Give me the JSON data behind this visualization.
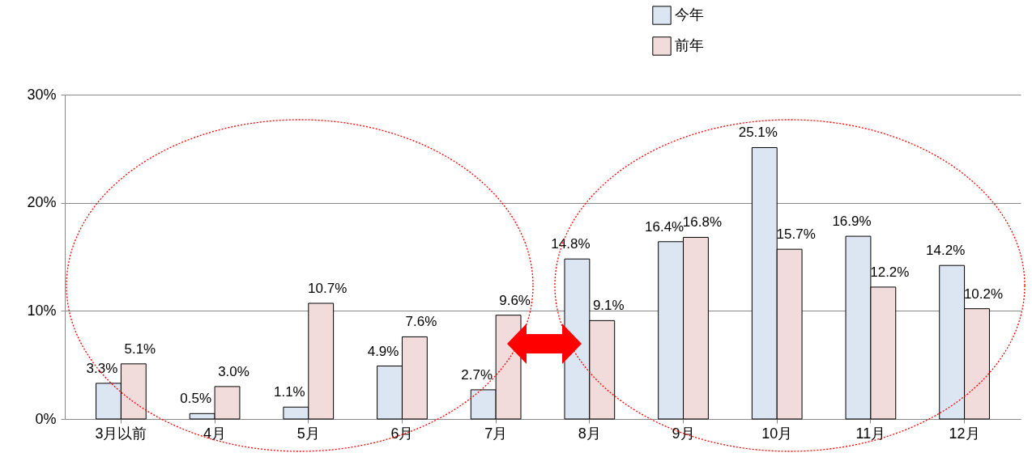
{
  "chart_data": {
    "type": "bar",
    "categories": [
      "3月以前",
      "4月",
      "5月",
      "6月",
      "7月",
      "8月",
      "9月",
      "10月",
      "11月",
      "12月"
    ],
    "series": [
      {
        "name": "今年",
        "color": "#dce6f2",
        "values": [
          3.3,
          0.5,
          1.1,
          4.9,
          2.7,
          14.8,
          16.4,
          25.1,
          16.9,
          14.2
        ],
        "value_labels": [
          "3.3%",
          "0.5%",
          "1.1%",
          "4.9%",
          "2.7%",
          "14.8%",
          "16.4%",
          "25.1%",
          "16.9%",
          "14.2%"
        ]
      },
      {
        "name": "前年",
        "color": "#f2dcdb",
        "values": [
          5.1,
          3.0,
          10.7,
          7.6,
          9.6,
          9.1,
          16.8,
          15.7,
          12.2,
          10.2
        ],
        "value_labels": [
          "5.1%",
          "3.0%",
          "10.7%",
          "7.6%",
          "9.6%",
          "9.1%",
          "16.8%",
          "15.7%",
          "12.2%",
          "10.2%"
        ]
      }
    ],
    "ylim": [
      0,
      30
    ],
    "yticks": [
      {
        "value": 0,
        "label": "0%"
      },
      {
        "value": 10,
        "label": "10%"
      },
      {
        "value": 20,
        "label": "20%"
      },
      {
        "value": 30,
        "label": "30%"
      }
    ],
    "grid": "y",
    "legend": "top right"
  }
}
